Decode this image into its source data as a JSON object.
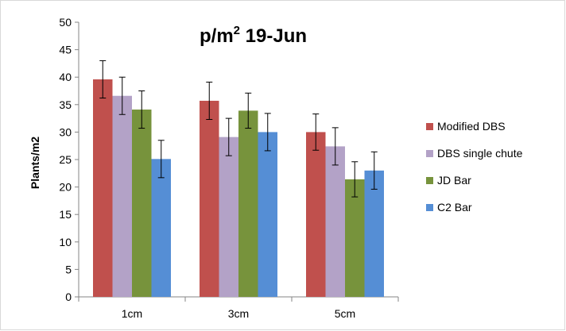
{
  "chart_data": {
    "type": "bar",
    "title_main": "p/m",
    "title_sup": "2",
    "title_rest": " 19-Jun",
    "xlabel": "",
    "ylabel": "Plants/m2",
    "categories": [
      "1cm",
      "3cm",
      "5cm"
    ],
    "ylim": [
      0,
      50
    ],
    "yticks": [
      0,
      5,
      10,
      15,
      20,
      25,
      30,
      35,
      40,
      45,
      50
    ],
    "grid": false,
    "legend_position": "right",
    "series": [
      {
        "name": "Modified DBS",
        "color": "#c0504d",
        "values": [
          39.6,
          35.7,
          30.0
        ],
        "errors": [
          3.4,
          3.4,
          3.3
        ]
      },
      {
        "name": "DBS single chute",
        "color": "#b3a2c7",
        "values": [
          36.6,
          29.1,
          27.4
        ],
        "errors": [
          3.4,
          3.4,
          3.4
        ]
      },
      {
        "name": "JD Bar",
        "color": "#77933c",
        "values": [
          34.1,
          33.9,
          21.4
        ],
        "errors": [
          3.4,
          3.2,
          3.2
        ]
      },
      {
        "name": "C2 Bar",
        "color": "#558ed5",
        "values": [
          25.1,
          30.0,
          23.0
        ],
        "errors": [
          3.4,
          3.4,
          3.4
        ]
      }
    ]
  }
}
